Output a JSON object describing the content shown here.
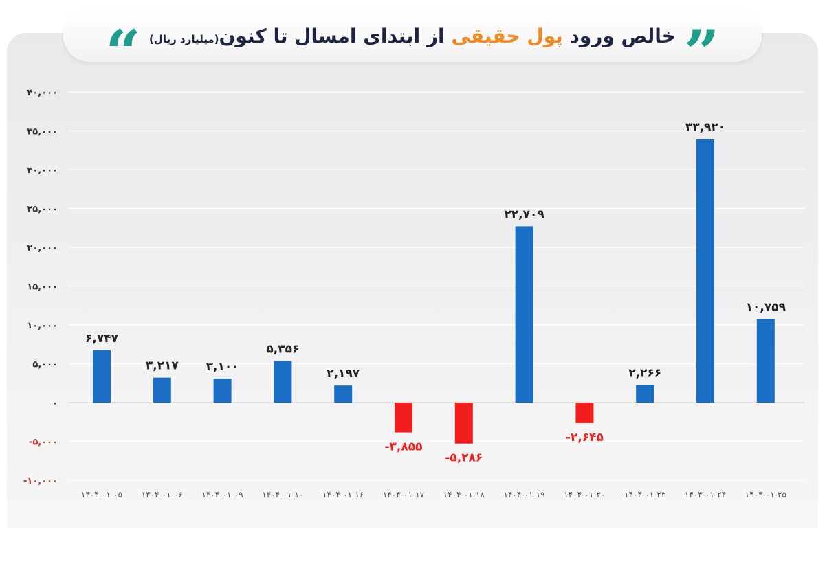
{
  "title": {
    "part1": "خالص ورود",
    "highlight": "پول حقیقی",
    "part2": "از ابتدای امسال تا کنون",
    "unit": "(میلیارد ریال)"
  },
  "colors": {
    "positive": "#1a6fc4",
    "negative": "#f21d1d",
    "title_accent": "#ef8a21",
    "quote": "#1f9c8c"
  },
  "chart_data": {
    "type": "bar",
    "title": "خالص ورود پول حقیقی از ابتدای امسال تا کنون (میلیارد ریال)",
    "categories": [
      "1404-01-05",
      "1404-01-06",
      "1404-01-09",
      "1404-01-10",
      "1404-01-16",
      "1404-01-17",
      "1404-01-18",
      "1404-01-19",
      "1404-01-20",
      "1404-01-23",
      "1404-01-24",
      "1404-01-25"
    ],
    "category_labels": [
      "۱۴۰۴-۰۱-۰۵",
      "۱۴۰۴-۰۱-۰۶",
      "۱۴۰۴-۰۱-۰۹",
      "۱۴۰۴-۰۱-۱۰",
      "۱۴۰۴-۰۱-۱۶",
      "۱۴۰۴-۰۱-۱۷",
      "۱۴۰۴-۰۱-۱۸",
      "۱۴۰۴-۰۱-۱۹",
      "۱۴۰۴-۰۱-۲۰",
      "۱۴۰۴-۰۱-۲۳",
      "۱۴۰۴-۰۱-۲۴",
      "۱۴۰۴-۰۱-۲۵"
    ],
    "values": [
      6747,
      3217,
      3100,
      5356,
      2197,
      -3855,
      -5286,
      22709,
      -2645,
      2266,
      33920,
      10759
    ],
    "value_labels": [
      "۶,۷۴۷",
      "۳,۲۱۷",
      "۳,۱۰۰",
      "۵,۳۵۶",
      "۲,۱۹۷",
      "-۳,۸۵۵",
      "-۵,۲۸۶",
      "۲۲,۷۰۹",
      "-۲,۶۴۵",
      "۲,۲۶۶",
      "۳۳,۹۲۰",
      "۱۰,۷۵۹"
    ],
    "ylim": [
      -10000,
      40000
    ],
    "yticks": [
      40000,
      35000,
      30000,
      25000,
      20000,
      15000,
      10000,
      5000,
      0,
      -5000,
      -10000
    ],
    "ytick_labels": [
      "۴۰,۰۰۰",
      "۳۵,۰۰۰",
      "۳۰,۰۰۰",
      "۲۵,۰۰۰",
      "۲۰,۰۰۰",
      "۱۵,۰۰۰",
      "۱۰,۰۰۰",
      "۵,۰۰۰",
      "۰",
      "-۵,۰۰۰",
      "-۱۰,۰۰۰"
    ],
    "grid": true,
    "xlabel": "",
    "ylabel": ""
  }
}
